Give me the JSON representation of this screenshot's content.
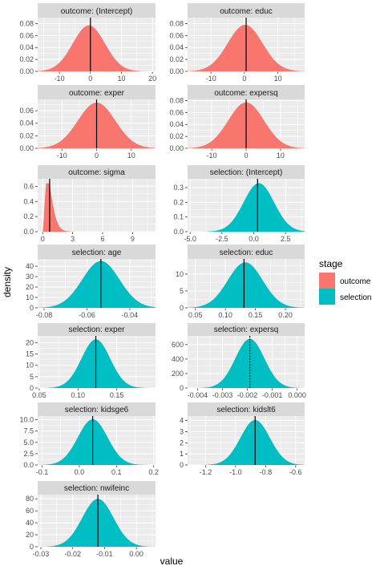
{
  "figure": {
    "xlabel": "value",
    "ylabel": "density",
    "legend": {
      "title": "stage",
      "placement": "right",
      "items": [
        {
          "label": "outcome",
          "color": "#F8766D"
        },
        {
          "label": "selection",
          "color": "#00BFC4"
        }
      ]
    },
    "panel_background": "#EBEBEB",
    "strip_background": "#D9D9D9",
    "grid_color": "#FFFFFF",
    "line_color": "#000000"
  },
  "chart_data": [
    {
      "type": "area",
      "title": "outcome: (Intercept)",
      "stage": "outcome",
      "xlim": [
        -17,
        21
      ],
      "ylim": [
        0,
        0.09
      ],
      "xticks": [
        -10,
        0,
        10,
        20
      ],
      "xtick_labels": [
        "-10",
        "0",
        "10",
        "20"
      ],
      "yticks": [
        0,
        0.02,
        0.04,
        0.06,
        0.08
      ],
      "ytick_labels": [
        "0.00",
        "0.02",
        "0.04",
        "0.06",
        "0.08"
      ],
      "mean": -0.5,
      "sd": 5.2,
      "peak": 0.077,
      "vline": 0.0
    },
    {
      "type": "area",
      "title": "outcome: educ",
      "stage": "outcome",
      "xlim": [
        -17,
        18
      ],
      "ylim": [
        0,
        0.09
      ],
      "xticks": [
        -10,
        0,
        10
      ],
      "xtick_labels": [
        "-10",
        "0",
        "10"
      ],
      "yticks": [
        0,
        0.02,
        0.04,
        0.06,
        0.08
      ],
      "ytick_labels": [
        "0.00",
        "0.02",
        "0.04",
        "0.06",
        "0.08"
      ],
      "mean": 0.2,
      "sd": 5.2,
      "peak": 0.078,
      "vline": 0.5
    },
    {
      "type": "area",
      "title": "outcome: exper",
      "stage": "outcome",
      "xlim": [
        -17,
        17
      ],
      "ylim": [
        0,
        0.078
      ],
      "xticks": [
        -10,
        0,
        10
      ],
      "xtick_labels": [
        "-10",
        "0",
        "10"
      ],
      "yticks": [
        0,
        0.02,
        0.04,
        0.06
      ],
      "ytick_labels": [
        "0.00",
        "0.02",
        "0.04",
        "0.06"
      ],
      "mean": 0,
      "sd": 5.4,
      "peak": 0.073,
      "vline": 0
    },
    {
      "type": "area",
      "title": "outcome: expersq",
      "stage": "outcome",
      "xlim": [
        -17,
        17
      ],
      "ylim": [
        0,
        0.082
      ],
      "xticks": [
        -10,
        0,
        10
      ],
      "xtick_labels": [
        "-10",
        "0",
        "10"
      ],
      "yticks": [
        0,
        0.02,
        0.04,
        0.06,
        0.08
      ],
      "ytick_labels": [
        "0.00",
        "0.02",
        "0.04",
        "0.06",
        "0.08"
      ],
      "mean": 0,
      "sd": 5.2,
      "peak": 0.077,
      "vline": 0
    },
    {
      "type": "area",
      "title": "outcome: sigma",
      "stage": "outcome",
      "xlim": [
        -0.5,
        11.3
      ],
      "ylim": [
        0,
        0.7
      ],
      "xticks": [
        0,
        3,
        6,
        9
      ],
      "xtick_labels": [
        "0",
        "3",
        "6",
        "9"
      ],
      "yticks": [
        0,
        0.2,
        0.4,
        0.6
      ],
      "ytick_labels": [
        "0.0",
        "0.2",
        "0.4",
        "0.6"
      ],
      "shape": "skewed",
      "peak": 0.64,
      "vline": 0.7
    },
    {
      "type": "area",
      "title": "selection: (Intercept)",
      "stage": "selection",
      "xlim": [
        -5.2,
        4
      ],
      "ylim": [
        0,
        0.36
      ],
      "xticks": [
        -5,
        -2.5,
        0,
        2.5
      ],
      "xtick_labels": [
        "-5.0",
        "-2.5",
        "0.0",
        "2.5"
      ],
      "yticks": [
        0,
        0.1,
        0.2,
        0.3
      ],
      "ytick_labels": [
        "0.0",
        "0.1",
        "0.2",
        "0.3"
      ],
      "mean": 0.4,
      "sd": 1.2,
      "peak": 0.33,
      "vline": 0.3
    },
    {
      "type": "area",
      "title": "selection: age",
      "stage": "selection",
      "xlim": [
        -0.083,
        -0.028
      ],
      "ylim": [
        0,
        47
      ],
      "xticks": [
        -0.08,
        -0.06,
        -0.04
      ],
      "xtick_labels": [
        "-0.08",
        "-0.06",
        "-0.04"
      ],
      "yticks": [
        0,
        10,
        20,
        30,
        40
      ],
      "ytick_labels": [
        "0",
        "10",
        "20",
        "30",
        "40"
      ],
      "mean": -0.0535,
      "sd": 0.0087,
      "peak": 45,
      "vline": -0.0535
    },
    {
      "type": "area",
      "title": "selection: educ",
      "stage": "selection",
      "xlim": [
        0.037,
        0.232
      ],
      "ylim": [
        0,
        14.5
      ],
      "xticks": [
        0.05,
        0.1,
        0.15,
        0.2
      ],
      "xtick_labels": [
        "0.05",
        "0.10",
        "0.15",
        "0.20"
      ],
      "yticks": [
        0,
        5,
        10
      ],
      "ytick_labels": [
        "0",
        "5",
        "10"
      ],
      "mean": 0.133,
      "sd": 0.029,
      "peak": 13.5,
      "vline": 0.131
    },
    {
      "type": "area",
      "title": "selection: exper",
      "stage": "selection",
      "xlim": [
        0.048,
        0.2
      ],
      "ylim": [
        0,
        23
      ],
      "xticks": [
        0.05,
        0.1,
        0.15
      ],
      "xtick_labels": [
        "0.05",
        "0.10",
        "0.15"
      ],
      "yticks": [
        0,
        5,
        10,
        15,
        20
      ],
      "ytick_labels": [
        "0",
        "5",
        "10",
        "15",
        "20"
      ],
      "mean": 0.123,
      "sd": 0.0185,
      "peak": 21.5,
      "vline": 0.123
    },
    {
      "type": "area",
      "title": "selection: expersq",
      "stage": "selection",
      "xlim": [
        -0.0044,
        0.0003
      ],
      "ylim": [
        0,
        720
      ],
      "xticks": [
        -0.004,
        -0.003,
        -0.002,
        -0.001,
        0.0
      ],
      "xtick_labels": [
        "-0.004",
        "-0.003",
        "-0.002",
        "-0.001",
        "0.000"
      ],
      "yticks": [
        0,
        200,
        400,
        600
      ],
      "ytick_labels": [
        "0",
        "200",
        "400",
        "600"
      ],
      "mean": -0.0019,
      "sd": 0.00058,
      "peak": 680,
      "vline": -0.0019,
      "vline_style": "dotted"
    },
    {
      "type": "area",
      "title": "selection: kidsge6",
      "stage": "selection",
      "xlim": [
        -0.112,
        0.205
      ],
      "ylim": [
        0,
        10.8
      ],
      "xticks": [
        -0.1,
        0.0,
        0.1,
        0.2
      ],
      "xtick_labels": [
        "-0.1",
        "0.0",
        "0.1",
        "0.2"
      ],
      "yticks": [
        0,
        2.5,
        5,
        7.5,
        10
      ],
      "ytick_labels": [
        "0.0",
        "2.5",
        "5.0",
        "7.5",
        "10.0"
      ],
      "mean": 0.036,
      "sd": 0.04,
      "peak": 10.1,
      "vline": 0.036
    },
    {
      "type": "area",
      "title": "selection: kidslt6",
      "stage": "selection",
      "xlim": [
        -1.32,
        -0.54
      ],
      "ylim": [
        0,
        4.4
      ],
      "xticks": [
        -1.2,
        -1.0,
        -0.8,
        -0.6
      ],
      "xtick_labels": [
        "-1.2",
        "-1.0",
        "-0.8",
        "-0.6"
      ],
      "yticks": [
        0,
        1,
        2,
        3,
        4
      ],
      "ytick_labels": [
        "0",
        "1",
        "2",
        "3",
        "4"
      ],
      "mean": -0.87,
      "sd": 0.098,
      "peak": 4.05,
      "vline": -0.87
    },
    {
      "type": "area",
      "title": "selection: nwifeinc",
      "stage": "selection",
      "xlim": [
        -0.031,
        0.006
      ],
      "ylim": [
        0,
        87
      ],
      "xticks": [
        -0.03,
        -0.02,
        -0.01,
        0.0
      ],
      "xtick_labels": [
        "-0.03",
        "-0.02",
        "-0.01",
        "0.00"
      ],
      "yticks": [
        0,
        20,
        40,
        60,
        80
      ],
      "ytick_labels": [
        "0",
        "20",
        "40",
        "60",
        "80"
      ],
      "mean": -0.0121,
      "sd": 0.0049,
      "peak": 80,
      "vline": -0.0121
    }
  ]
}
